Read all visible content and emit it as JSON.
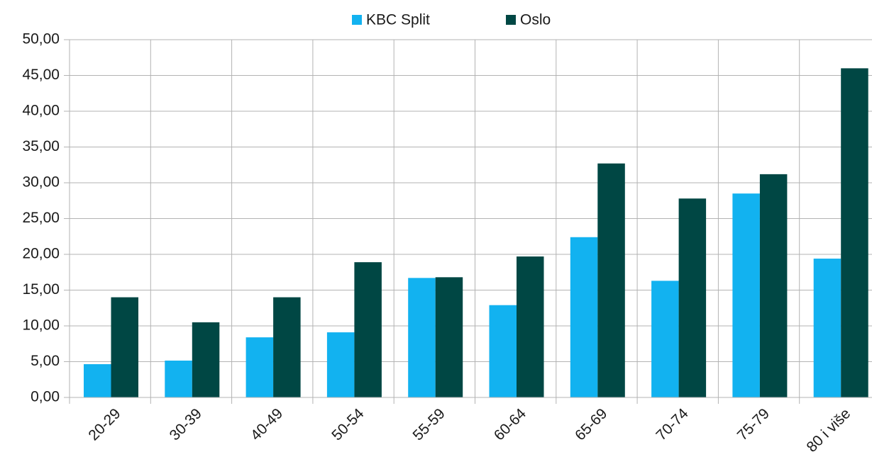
{
  "chart_data": {
    "type": "bar",
    "categories": [
      "20-29",
      "30-39",
      "40-49",
      "50-54",
      "55-59",
      "60-64",
      "65-69",
      "70-74",
      "75-79",
      "80 i više"
    ],
    "series": [
      {
        "name": "KBC Split",
        "color": "#12b2f0",
        "values": [
          4.65,
          5.15,
          8.4,
          9.1,
          16.7,
          12.9,
          22.4,
          16.3,
          28.5,
          19.4
        ]
      },
      {
        "name": "Oslo",
        "color": "#004744",
        "values": [
          14.0,
          10.5,
          14.0,
          18.9,
          16.8,
          19.7,
          32.7,
          27.8,
          31.2,
          46.0
        ]
      }
    ],
    "ylim": [
      0,
      50
    ],
    "yticks": [
      {
        "value": 0,
        "label": "0,00"
      },
      {
        "value": 5,
        "label": "5,00"
      },
      {
        "value": 10,
        "label": "10,00"
      },
      {
        "value": 15,
        "label": "15,00"
      },
      {
        "value": 20,
        "label": "20,00"
      },
      {
        "value": 25,
        "label": "25,00"
      },
      {
        "value": 30,
        "label": "30,00"
      },
      {
        "value": 35,
        "label": "35,00"
      },
      {
        "value": 40,
        "label": "40,00"
      },
      {
        "value": 45,
        "label": "45,00"
      },
      {
        "value": 50,
        "label": "50,00"
      }
    ],
    "grid": true,
    "legend": "top"
  }
}
